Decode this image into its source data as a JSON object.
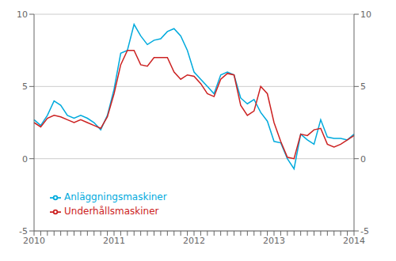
{
  "chart_data": {
    "type": "line",
    "title": "",
    "categories": [
      "2010",
      null,
      null,
      null,
      null,
      null,
      null,
      null,
      null,
      null,
      null,
      null,
      "2011",
      null,
      null,
      null,
      null,
      null,
      null,
      null,
      null,
      null,
      null,
      null,
      "2012",
      null,
      null,
      null,
      null,
      null,
      null,
      null,
      null,
      null,
      null,
      null,
      "2013",
      null,
      null,
      null,
      null,
      null,
      null,
      null,
      null,
      null,
      null,
      null,
      "2014"
    ],
    "series": [
      {
        "name": "Anläggningsmaskiner",
        "color": "#00aadd",
        "values": [
          2.7,
          2.3,
          3.0,
          4.0,
          3.7,
          3.0,
          2.8,
          3.0,
          2.8,
          2.5,
          2.0,
          3.0,
          4.8,
          7.3,
          7.5,
          9.3,
          8.5,
          7.9,
          8.2,
          8.3,
          8.8,
          9.0,
          8.5,
          7.5,
          6.0,
          5.5,
          5.0,
          4.5,
          5.8,
          6.0,
          5.8,
          4.2,
          3.8,
          4.1,
          3.2,
          2.6,
          1.2,
          1.1,
          0.0,
          -0.7,
          1.7,
          1.3,
          1.0,
          2.7,
          1.5,
          1.4,
          1.4,
          1.3,
          1.7
        ]
      },
      {
        "name": "Underhållsmaskiner",
        "color": "#cc2222",
        "values": [
          2.5,
          2.2,
          2.8,
          3.0,
          2.9,
          2.7,
          2.5,
          2.7,
          2.5,
          2.3,
          2.1,
          2.9,
          4.5,
          6.5,
          7.5,
          7.5,
          6.5,
          6.4,
          7.0,
          7.0,
          7.0,
          6.0,
          5.5,
          5.8,
          5.7,
          5.2,
          4.5,
          4.3,
          5.5,
          5.9,
          5.8,
          3.7,
          3.0,
          3.3,
          5.0,
          4.5,
          2.5,
          1.2,
          0.1,
          0.0,
          1.7,
          1.6,
          2.0,
          2.1,
          1.0,
          0.8,
          1.0,
          1.3,
          1.6
        ]
      }
    ],
    "ylim": [
      -5,
      10
    ],
    "yticks": [
      -5,
      0,
      5,
      10
    ],
    "y2lim": [
      -5,
      10
    ],
    "y2ticks": [
      -5,
      0,
      5,
      10
    ],
    "grid": true,
    "legend": "lower left"
  }
}
